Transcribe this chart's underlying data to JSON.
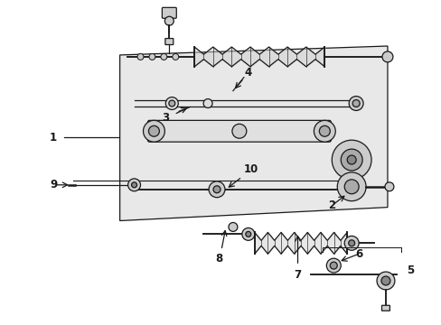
{
  "bg_color": "#ffffff",
  "line_color": "#1a1a1a",
  "gray_fill": "#e8e8e8",
  "dark_gray": "#aaaaaa",
  "fig_width": 4.89,
  "fig_height": 3.6,
  "dpi": 100
}
